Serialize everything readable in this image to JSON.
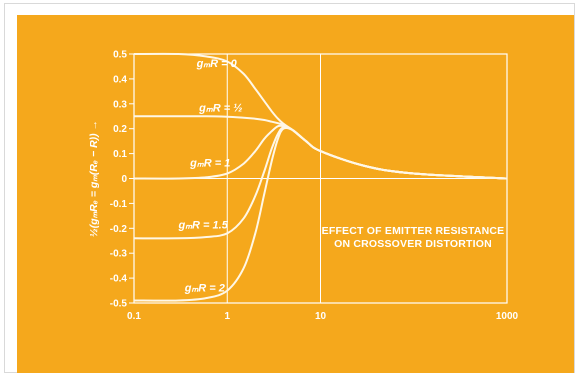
{
  "chart_data": {
    "type": "line",
    "ylabel": "½(gₘRₑ = gₘ(Rₑ − R)) →",
    "xscale": "log",
    "xlim": [
      0.1,
      1000
    ],
    "ylim": [
      -0.5,
      0.5
    ],
    "xticks": [
      0.1,
      1,
      10,
      1000
    ],
    "xtick_labels": [
      "0.1",
      "1",
      "10",
      "1000"
    ],
    "yticks": [
      0.5,
      0.4,
      0.3,
      0.2,
      0.1,
      0,
      -0.1,
      -0.2,
      -0.3,
      -0.4,
      -0.5
    ],
    "ytick_labels": [
      "0.5",
      "0.4",
      "0.3",
      "0.2",
      "0.1",
      "0",
      "-0.1",
      "-0.2",
      "-0.3",
      "-0.4",
      "-0.5"
    ],
    "grid": true,
    "annotation": [
      "EFFECT OF EMITTER RESISTANCE",
      "ON CROSSOVER DISTORTION"
    ],
    "x": [
      0.1,
      0.3,
      0.6,
      1,
      1.5,
      2,
      2.5,
      3,
      3.5,
      4,
      5,
      7,
      10,
      30,
      100,
      1000
    ],
    "series": [
      {
        "label": "gₘR = 0",
        "values": [
          0.5,
          0.5,
          0.49,
          0.47,
          0.42,
          0.36,
          0.31,
          0.27,
          0.24,
          0.22,
          0.195,
          0.15,
          0.11,
          0.05,
          0.02,
          0.0
        ]
      },
      {
        "label": "gₘR = ½",
        "values": [
          0.25,
          0.25,
          0.25,
          0.248,
          0.244,
          0.24,
          0.235,
          0.228,
          0.222,
          0.215,
          0.195,
          0.15,
          0.11,
          0.05,
          0.02,
          0.0
        ]
      },
      {
        "label": "gₘR = 1",
        "values": [
          0.0,
          0.0,
          0.005,
          0.02,
          0.06,
          0.11,
          0.16,
          0.19,
          0.21,
          0.21,
          0.195,
          0.15,
          0.11,
          0.05,
          0.02,
          0.0
        ]
      },
      {
        "label": "gₘR = 1.5",
        "values": [
          -0.24,
          -0.24,
          -0.235,
          -0.22,
          -0.16,
          -0.07,
          0.03,
          0.12,
          0.18,
          0.205,
          0.195,
          0.15,
          0.11,
          0.05,
          0.02,
          0.0
        ]
      },
      {
        "label": "gₘR = 2",
        "values": [
          -0.49,
          -0.49,
          -0.48,
          -0.45,
          -0.36,
          -0.22,
          -0.06,
          0.07,
          0.16,
          0.2,
          0.195,
          0.15,
          0.11,
          0.05,
          0.02,
          0.0
        ]
      }
    ]
  }
}
